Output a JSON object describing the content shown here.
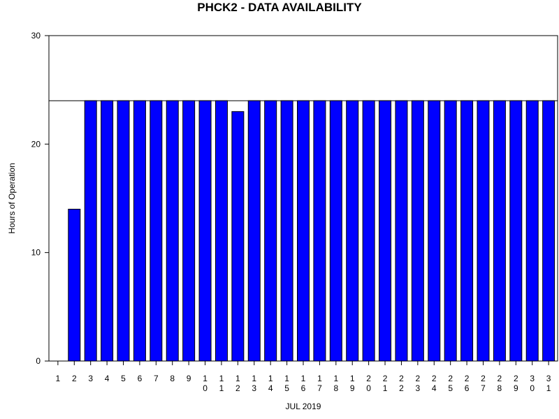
{
  "chart_data": {
    "type": "bar",
    "title": "PHCK2 - DATA AVAILABILITY",
    "xlabel": "JUL 2019",
    "ylabel": "Hours of Operation",
    "ylim": [
      0,
      30
    ],
    "yticks": [
      0,
      10,
      20,
      30
    ],
    "categories": [
      "1",
      "2",
      "3",
      "4",
      "5",
      "6",
      "7",
      "8",
      "9",
      "10",
      "11",
      "12",
      "13",
      "14",
      "15",
      "16",
      "17",
      "18",
      "19",
      "20",
      "21",
      "22",
      "23",
      "24",
      "25",
      "26",
      "27",
      "28",
      "29",
      "30",
      "31"
    ],
    "values": [
      0,
      14,
      24,
      24,
      24,
      24,
      24,
      24,
      24,
      24,
      24,
      23,
      24,
      24,
      24,
      24,
      24,
      24,
      24,
      24,
      24,
      24,
      24,
      24,
      24,
      24,
      24,
      24,
      24,
      24,
      24
    ],
    "reference_line": 24,
    "grid": false,
    "colors": {
      "bar": "#0000ff",
      "bar_outline": "#000000",
      "axis": "#000000"
    }
  }
}
